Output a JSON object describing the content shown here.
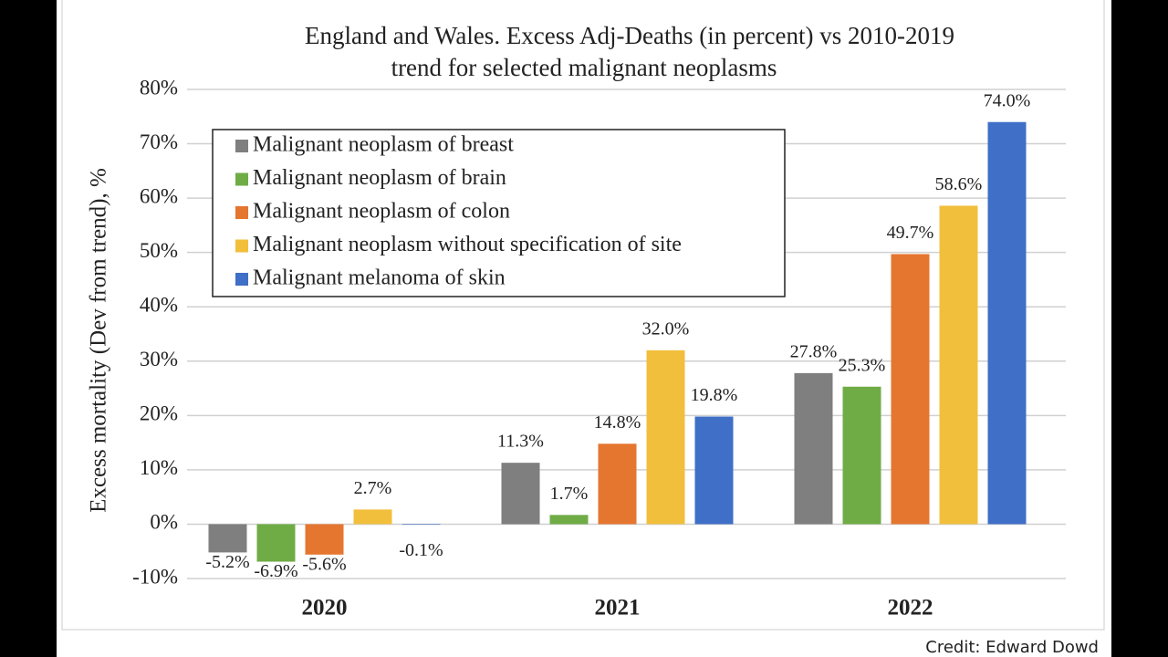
{
  "chart_data": {
    "type": "bar",
    "title": "England and Wales. Excess Adj-Deaths (in percent) vs 2010-2019",
    "subtitle": "trend for selected malignant neoplasms",
    "y_label": "Excess mortality (Dev from trend), %",
    "credit": "Credit: Edward Dowd",
    "categories": [
      "2020",
      "2021",
      "2022"
    ],
    "series": [
      {
        "name": "Malignant neoplasm of breast",
        "color": "#7f7f7f",
        "values": [
          -5.2,
          11.3,
          27.8
        ],
        "value_labels": [
          "-5.2%",
          "11.3%",
          "27.8%"
        ]
      },
      {
        "name": "Malignant neoplasm of brain",
        "color": "#6fac46",
        "values": [
          -6.9,
          1.7,
          25.3
        ],
        "value_labels": [
          "-6.9%",
          "1.7%",
          "25.3%"
        ]
      },
      {
        "name": "Malignant neoplasm of colon",
        "color": "#e5762f",
        "values": [
          -5.6,
          14.8,
          49.7
        ],
        "value_labels": [
          "-5.6%",
          "14.8%",
          "49.7%"
        ]
      },
      {
        "name": "Malignant neoplasm without specification of site",
        "color": "#f2bf3c",
        "values": [
          2.7,
          32.0,
          58.6
        ],
        "value_labels": [
          "2.7%",
          "32.0%",
          "58.6%"
        ]
      },
      {
        "name": "Malignant melanoma of skin",
        "color": "#3f6fc6",
        "values": [
          -0.1,
          19.8,
          74.0
        ],
        "value_labels": [
          "-0.1%",
          "19.8%",
          "74.0%"
        ]
      }
    ],
    "ylim": [
      -10,
      80
    ],
    "yticks": [
      {
        "value": -10,
        "label": "-10%"
      },
      {
        "value": 0,
        "label": "0%"
      },
      {
        "value": 10,
        "label": "10%"
      },
      {
        "value": 20,
        "label": "20%"
      },
      {
        "value": 30,
        "label": "30%"
      },
      {
        "value": 40,
        "label": "40%"
      },
      {
        "value": 50,
        "label": "50%"
      },
      {
        "value": 60,
        "label": "60%"
      },
      {
        "value": 70,
        "label": "70%"
      },
      {
        "value": 80,
        "label": "80%"
      }
    ],
    "grid": true,
    "legend": "top-left"
  }
}
